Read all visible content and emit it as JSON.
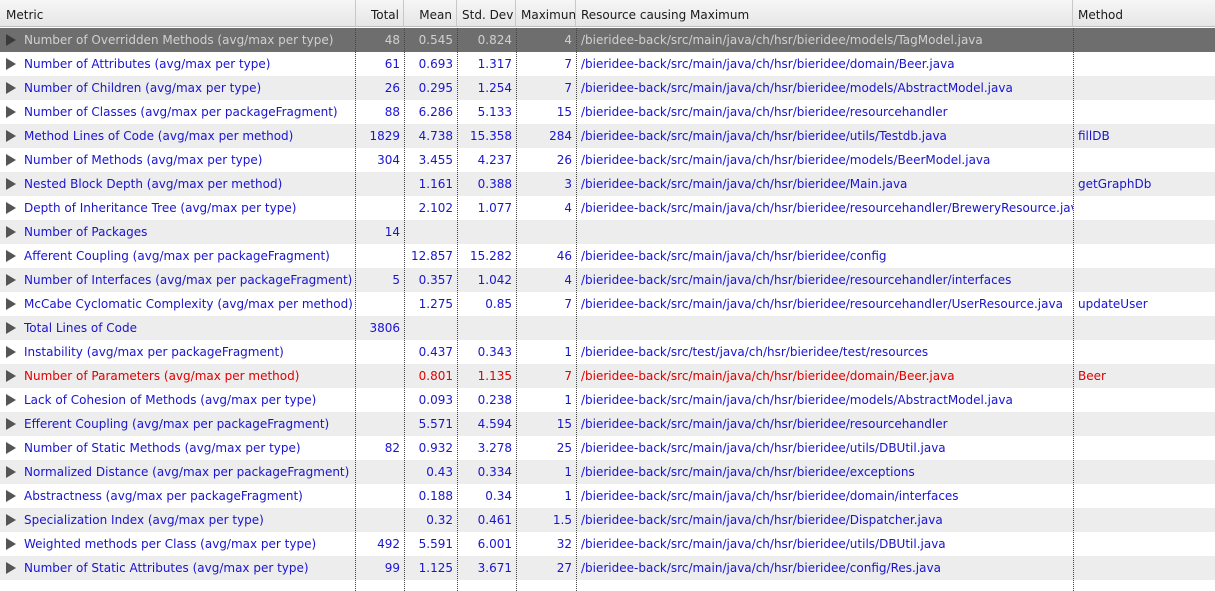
{
  "columns": {
    "metric": "Metric",
    "total": "Total",
    "mean": "Mean",
    "std": "Std. Dev",
    "max": "Maximun",
    "resource": "Resource causing Maximum",
    "method": "Method"
  },
  "rows": [
    {
      "metric": "Number of Overridden Methods (avg/max per type)",
      "total": "48",
      "mean": "0.545",
      "std": "0.824",
      "max": "4",
      "resource": "/bieridee-back/src/main/java/ch/hsr/bieridee/models/TagModel.java",
      "method": "",
      "state": "selected"
    },
    {
      "metric": "Number of Attributes (avg/max per type)",
      "total": "61",
      "mean": "0.693",
      "std": "1.317",
      "max": "7",
      "resource": "/bieridee-back/src/main/java/ch/hsr/bieridee/domain/Beer.java",
      "method": ""
    },
    {
      "metric": "Number of Children (avg/max per type)",
      "total": "26",
      "mean": "0.295",
      "std": "1.254",
      "max": "7",
      "resource": "/bieridee-back/src/main/java/ch/hsr/bieridee/models/AbstractModel.java",
      "method": ""
    },
    {
      "metric": "Number of Classes (avg/max per packageFragment)",
      "total": "88",
      "mean": "6.286",
      "std": "5.133",
      "max": "15",
      "resource": "/bieridee-back/src/main/java/ch/hsr/bieridee/resourcehandler",
      "method": ""
    },
    {
      "metric": "Method Lines of Code (avg/max per method)",
      "total": "1829",
      "mean": "4.738",
      "std": "15.358",
      "max": "284",
      "resource": "/bieridee-back/src/main/java/ch/hsr/bieridee/utils/Testdb.java",
      "method": "fillDB"
    },
    {
      "metric": "Number of Methods (avg/max per type)",
      "total": "304",
      "mean": "3.455",
      "std": "4.237",
      "max": "26",
      "resource": "/bieridee-back/src/main/java/ch/hsr/bieridee/models/BeerModel.java",
      "method": ""
    },
    {
      "metric": "Nested Block Depth (avg/max per method)",
      "total": "",
      "mean": "1.161",
      "std": "0.388",
      "max": "3",
      "resource": "/bieridee-back/src/main/java/ch/hsr/bieridee/Main.java",
      "method": "getGraphDb"
    },
    {
      "metric": "Depth of Inheritance Tree (avg/max per type)",
      "total": "",
      "mean": "2.102",
      "std": "1.077",
      "max": "4",
      "resource": "/bieridee-back/src/main/java/ch/hsr/bieridee/resourcehandler/BreweryResource.java",
      "method": ""
    },
    {
      "metric": "Number of Packages",
      "total": "14",
      "mean": "",
      "std": "",
      "max": "",
      "resource": "",
      "method": ""
    },
    {
      "metric": "Afferent Coupling (avg/max per packageFragment)",
      "total": "",
      "mean": "12.857",
      "std": "15.282",
      "max": "46",
      "resource": "/bieridee-back/src/main/java/ch/hsr/bieridee/config",
      "method": ""
    },
    {
      "metric": "Number of Interfaces (avg/max per packageFragment)",
      "total": "5",
      "mean": "0.357",
      "std": "1.042",
      "max": "4",
      "resource": "/bieridee-back/src/main/java/ch/hsr/bieridee/resourcehandler/interfaces",
      "method": ""
    },
    {
      "metric": "McCabe Cyclomatic Complexity (avg/max per method)",
      "total": "",
      "mean": "1.275",
      "std": "0.85",
      "max": "7",
      "resource": "/bieridee-back/src/main/java/ch/hsr/bieridee/resourcehandler/UserResource.java",
      "method": "updateUser"
    },
    {
      "metric": "Total Lines of Code",
      "total": "3806",
      "mean": "",
      "std": "",
      "max": "",
      "resource": "",
      "method": ""
    },
    {
      "metric": "Instability (avg/max per packageFragment)",
      "total": "",
      "mean": "0.437",
      "std": "0.343",
      "max": "1",
      "resource": "/bieridee-back/src/test/java/ch/hsr/bieridee/test/resources",
      "method": ""
    },
    {
      "metric": "Number of Parameters (avg/max per method)",
      "total": "",
      "mean": "0.801",
      "std": "1.135",
      "max": "7",
      "resource": "/bieridee-back/src/main/java/ch/hsr/bieridee/domain/Beer.java",
      "method": "Beer",
      "state": "error"
    },
    {
      "metric": "Lack of Cohesion of Methods (avg/max per type)",
      "total": "",
      "mean": "0.093",
      "std": "0.238",
      "max": "1",
      "resource": "/bieridee-back/src/main/java/ch/hsr/bieridee/models/AbstractModel.java",
      "method": ""
    },
    {
      "metric": "Efferent Coupling (avg/max per packageFragment)",
      "total": "",
      "mean": "5.571",
      "std": "4.594",
      "max": "15",
      "resource": "/bieridee-back/src/main/java/ch/hsr/bieridee/resourcehandler",
      "method": ""
    },
    {
      "metric": "Number of Static Methods (avg/max per type)",
      "total": "82",
      "mean": "0.932",
      "std": "3.278",
      "max": "25",
      "resource": "/bieridee-back/src/main/java/ch/hsr/bieridee/utils/DBUtil.java",
      "method": ""
    },
    {
      "metric": "Normalized Distance (avg/max per packageFragment)",
      "total": "",
      "mean": "0.43",
      "std": "0.334",
      "max": "1",
      "resource": "/bieridee-back/src/main/java/ch/hsr/bieridee/exceptions",
      "method": ""
    },
    {
      "metric": "Abstractness (avg/max per packageFragment)",
      "total": "",
      "mean": "0.188",
      "std": "0.34",
      "max": "1",
      "resource": "/bieridee-back/src/main/java/ch/hsr/bieridee/domain/interfaces",
      "method": ""
    },
    {
      "metric": "Specialization Index (avg/max per type)",
      "total": "",
      "mean": "0.32",
      "std": "0.461",
      "max": "1.5",
      "resource": "/bieridee-back/src/main/java/ch/hsr/bieridee/Dispatcher.java",
      "method": ""
    },
    {
      "metric": "Weighted methods per Class (avg/max per type)",
      "total": "492",
      "mean": "5.591",
      "std": "6.001",
      "max": "32",
      "resource": "/bieridee-back/src/main/java/ch/hsr/bieridee/utils/DBUtil.java",
      "method": ""
    },
    {
      "metric": "Number of Static Attributes (avg/max per type)",
      "total": "99",
      "mean": "1.125",
      "std": "3.671",
      "max": "27",
      "resource": "/bieridee-back/src/main/java/ch/hsr/bieridee/config/Res.java",
      "method": ""
    }
  ],
  "colors": {
    "link": "#1a14d2",
    "error": "#e00000",
    "selected_bg": "#6e6e6e"
  }
}
